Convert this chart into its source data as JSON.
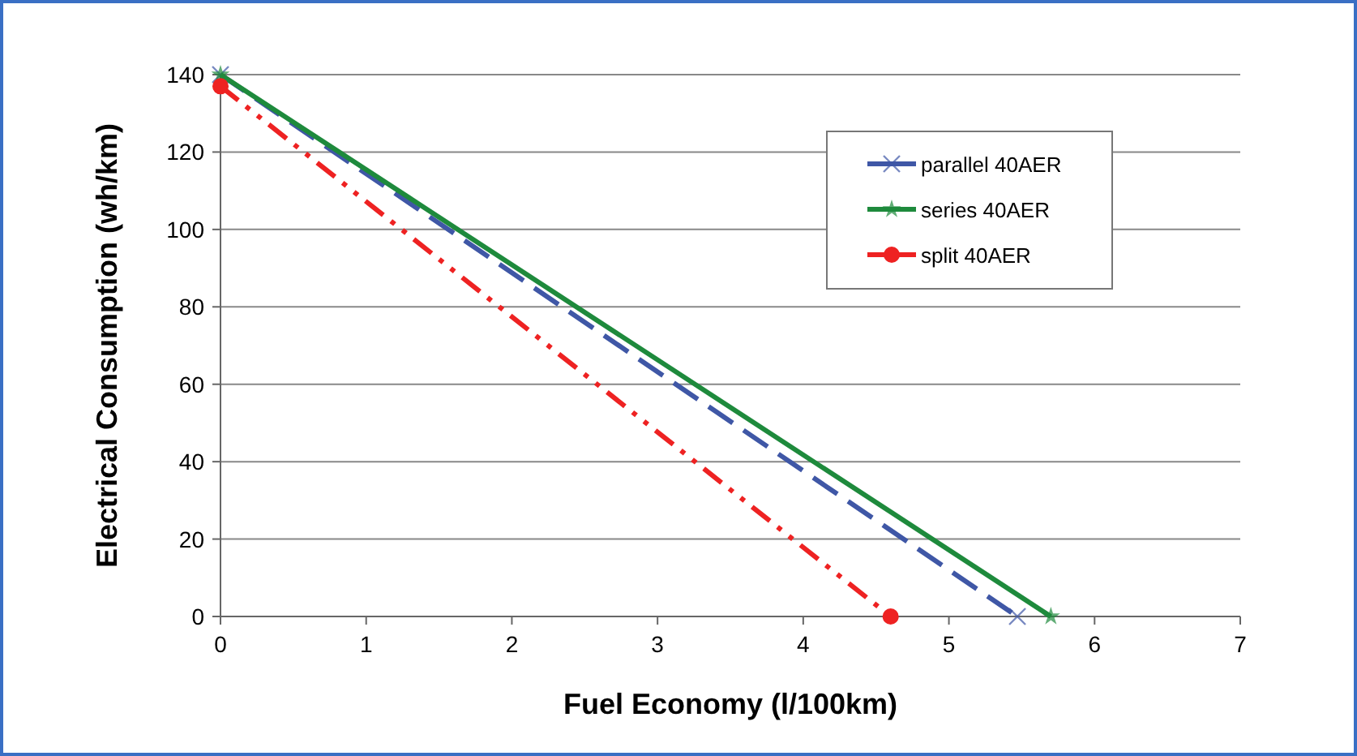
{
  "chart_data": {
    "type": "line",
    "xlabel": "Fuel Economy (l/100km)",
    "ylabel": "Electrical Consumption (wh/km)",
    "xlim": [
      0,
      7
    ],
    "xticks": [
      0,
      1,
      2,
      3,
      4,
      5,
      6,
      7
    ],
    "ylim": [
      0,
      140
    ],
    "yticks": [
      0,
      20,
      40,
      60,
      80,
      100,
      120,
      140
    ],
    "grid": "y",
    "legend": "top right",
    "series": [
      {
        "name": "parallel 40AER",
        "color": "#3f57a6",
        "x": [
          0,
          5.47
        ],
        "values": [
          140,
          0
        ],
        "marker": "cross",
        "line_style": "dashed"
      },
      {
        "name": "series 40AER",
        "color": "#1e8a3c",
        "x": [
          0,
          5.7
        ],
        "values": [
          140,
          0
        ],
        "marker": "star",
        "line_style": "solid"
      },
      {
        "name": "split 40AER",
        "color": "#ee2222",
        "x": [
          0,
          4.6
        ],
        "values": [
          137,
          0
        ],
        "marker": "circle",
        "line_style": "dotted"
      }
    ]
  }
}
